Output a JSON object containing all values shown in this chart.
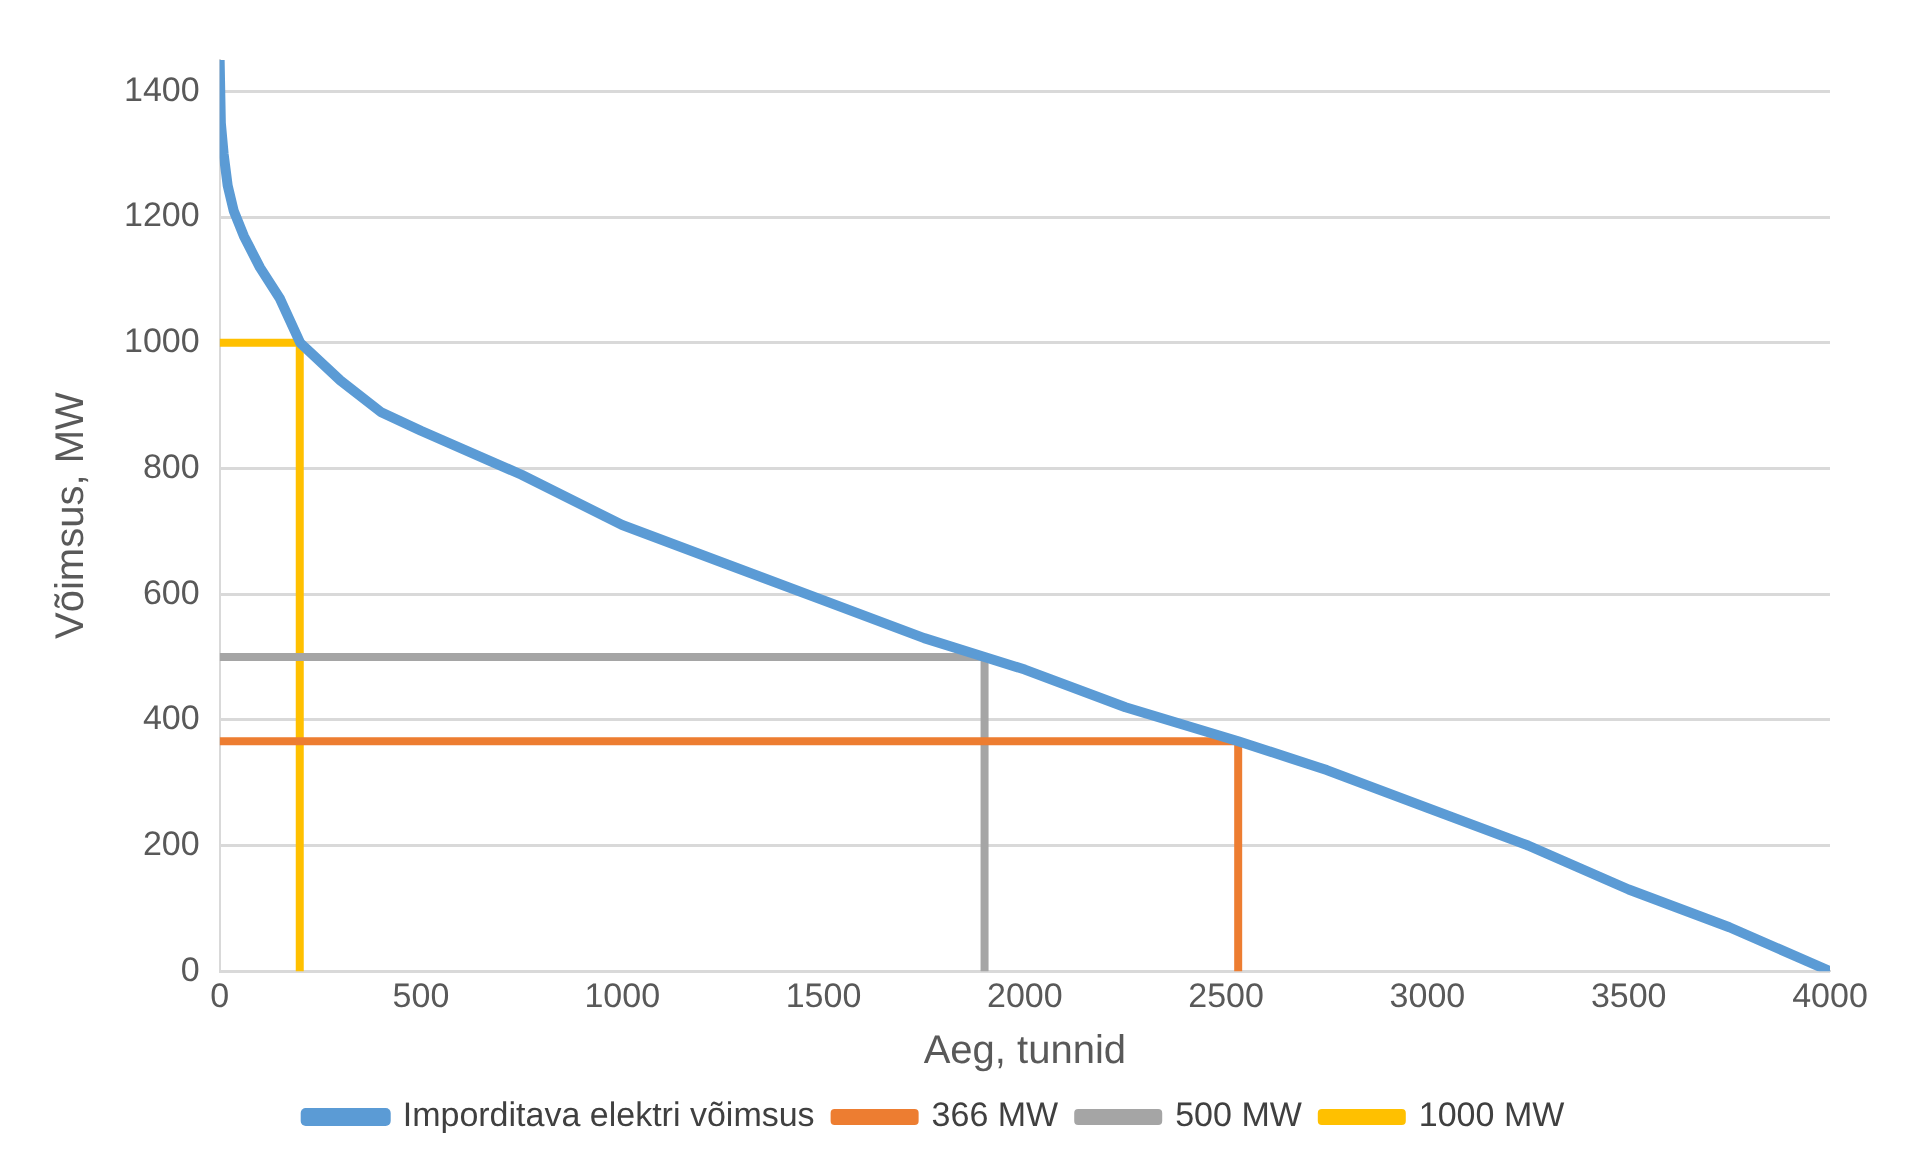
{
  "chart_data": {
    "type": "line",
    "xlabel": "Aeg, tunnid",
    "ylabel": "Võimsus, MW",
    "xlim": [
      0,
      4000
    ],
    "xticks": [
      0,
      500,
      1000,
      1500,
      2000,
      2500,
      3000,
      3500,
      4000
    ],
    "ylim": [
      0,
      1450
    ],
    "yticks": [
      0,
      200,
      400,
      600,
      800,
      1000,
      1200,
      1400
    ],
    "grid": "y",
    "legend": "bottom",
    "marker": "none",
    "line_style": "solid",
    "series": [
      {
        "name": "Imporditava elektri võimsus",
        "color": "#5b9bd5",
        "x": [
          0,
          3,
          10,
          20,
          35,
          60,
          100,
          150,
          200,
          300,
          400,
          500,
          750,
          1000,
          1250,
          1500,
          1750,
          1900,
          2000,
          2250,
          2530,
          2750,
          3000,
          3250,
          3500,
          3750,
          4000
        ],
        "values": [
          1450,
          1350,
          1300,
          1250,
          1210,
          1170,
          1120,
          1070,
          1000,
          940,
          890,
          860,
          790,
          710,
          650,
          590,
          530,
          500,
          480,
          420,
          366,
          320,
          260,
          200,
          130,
          70,
          0
        ]
      },
      {
        "name": "366 MW",
        "color": "#ed7d31",
        "x": [
          0,
          2530,
          2530
        ],
        "values": [
          366,
          366,
          0
        ]
      },
      {
        "name": "500 MW",
        "color": "#a5a5a5",
        "x": [
          0,
          1900,
          1900
        ],
        "values": [
          500,
          500,
          0
        ]
      },
      {
        "name": "1000 MW",
        "color": "#ffc000",
        "x": [
          0,
          199,
          199
        ],
        "values": [
          1000,
          1000,
          0
        ]
      }
    ]
  }
}
